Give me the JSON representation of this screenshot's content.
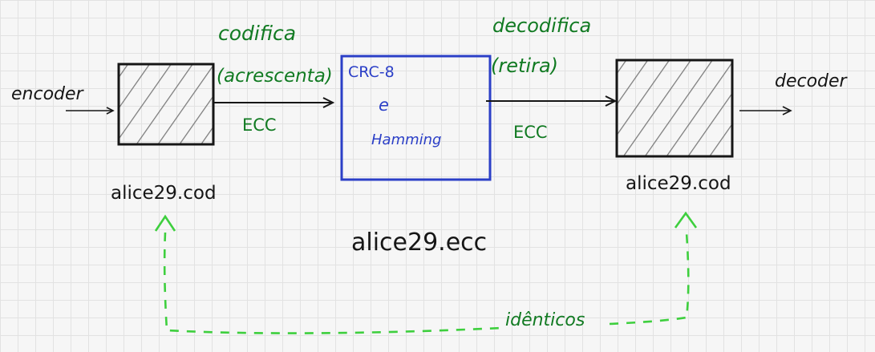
{
  "labels": {
    "encoder": "encoder",
    "decoder": "decoder",
    "codifica": "codifica",
    "acrescenta": "(acrescenta)",
    "ecc_left": "ECC",
    "decodifica": "decodifica",
    "retira": "(retira)",
    "ecc_right": "ECC",
    "block_line1": "CRC-8",
    "block_line2": "e",
    "block_line3": "Hamming",
    "file_left": "alice29.cod",
    "file_right": "alice29.cod",
    "file_middle": "alice29.ecc",
    "identicos": "idênticos"
  },
  "colors": {
    "ink": "#161616",
    "green": "#117a22",
    "dashed_green": "#3ecf3e",
    "blue": "#2b3fc7",
    "hatch": "#7a7a7a"
  }
}
